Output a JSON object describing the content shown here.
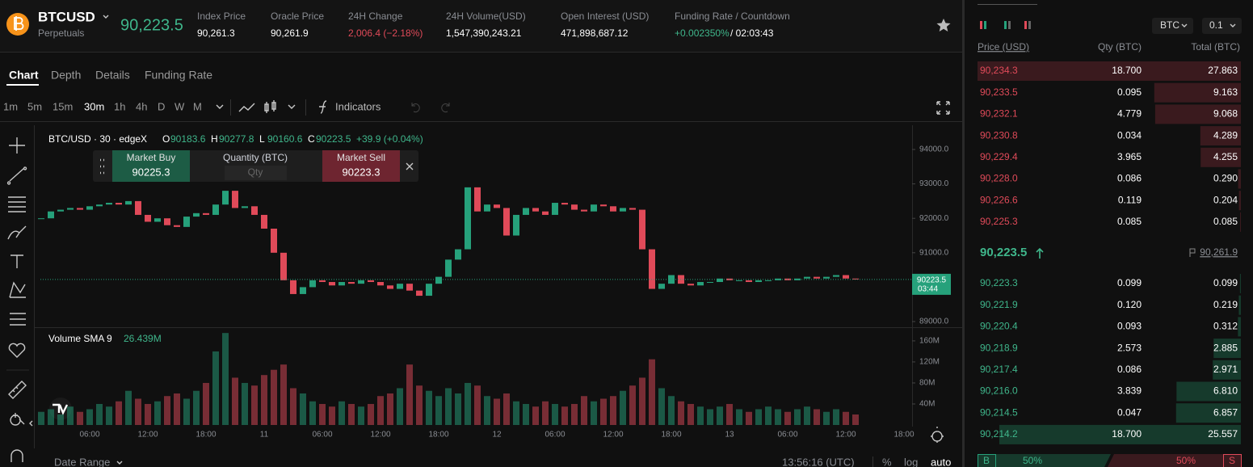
{
  "header": {
    "symbol": "BTCUSD",
    "market": "Perpetuals",
    "last_price": "90,223.5",
    "stats": [
      {
        "label": "Index Price",
        "value": "90,261.3"
      },
      {
        "label": "Oracle Price",
        "value": "90,261.9"
      },
      {
        "label": "24H Change",
        "value": "2,006.4 (−2.18%)"
      },
      {
        "label": "24H Volume(USD)",
        "value": "1,547,390,243.21"
      },
      {
        "label": "Open Interest (USD)",
        "value": "471,898,687.12"
      },
      {
        "label": "Funding Rate / Countdown",
        "value": "+0.002350%",
        "countdown": "/ 02:03:43"
      }
    ]
  },
  "tabs": [
    "Chart",
    "Depth",
    "Details",
    "Funding Rate"
  ],
  "intervals": [
    "1m",
    "5m",
    "15m",
    "30m",
    "1h",
    "4h",
    "D",
    "W",
    "M"
  ],
  "indicators": "Indicators",
  "trade_panel": {
    "buy": "Market Buy",
    "buy_price": "90225.3",
    "qty_label": "Quantity (BTC)",
    "qty_placeholder": "Qty",
    "sell": "Market Sell",
    "sell_price": "90223.3"
  },
  "chart_data": {
    "type": "candlestick",
    "title": "BTC/USD · 30 · edgeX",
    "ohlc": [
      {
        "key": "O",
        "value": "90183.6"
      },
      {
        "key": "H",
        "value": "90277.8"
      },
      {
        "key": "L",
        "value": "90160.6"
      },
      {
        "key": "C",
        "value": "90223.5"
      }
    ],
    "change": "+39.9 (+0.04%)",
    "price_label": "90223.5",
    "countdown": "03:44",
    "categories": [
      null,
      null,
      null,
      null,
      null,
      "06:00",
      null,
      null,
      null,
      null,
      null,
      "12:00",
      null,
      null,
      null,
      null,
      null,
      "18:00",
      null,
      null,
      null,
      null,
      null,
      "11",
      null,
      null,
      null,
      null,
      null,
      "06:00",
      null,
      null,
      null,
      null,
      null,
      "12:00",
      null,
      null,
      null,
      null,
      null,
      "18:00",
      null,
      null,
      null,
      null,
      null,
      "12",
      null,
      null,
      null,
      null,
      null,
      "06:00",
      null,
      null,
      null,
      null,
      null,
      "12:00",
      null,
      null,
      null,
      null,
      null,
      "18:00",
      null,
      null,
      null,
      null,
      null,
      "13",
      null,
      null,
      null,
      null,
      null,
      "06:00",
      null,
      null,
      null,
      null,
      null,
      "12:00",
      null,
      null,
      null,
      null,
      null,
      "18:00"
    ],
    "closes": [
      92000,
      92200,
      92250,
      92300,
      92250,
      92350,
      92400,
      92450,
      92400,
      92500,
      92100,
      91900,
      92000,
      91800,
      91750,
      92050,
      92150,
      92100,
      92400,
      92800,
      92300,
      92350,
      92100,
      91700,
      91000,
      90200,
      89800,
      90000,
      90200,
      90150,
      90050,
      90150,
      90100,
      90200,
      90150,
      90050,
      89950,
      90100,
      89900,
      89750,
      90100,
      90300,
      90800,
      91100,
      92900,
      92200,
      92400,
      92300,
      91500,
      92100,
      92300,
      92200,
      92100,
      92450,
      92400,
      92250,
      92200,
      92400,
      92350,
      92200,
      92300,
      92250,
      91100,
      89950,
      90100,
      90350,
      90100,
      90050,
      90150,
      90150,
      90250,
      90200,
      90200,
      90150,
      90200,
      90200,
      90250,
      90200,
      90250,
      90300,
      90250,
      90300,
      90350,
      90250,
      90223.5,
      null,
      null,
      null,
      null,
      null
    ],
    "ylim": [
      88836,
      94587
    ],
    "yticks": [
      {
        "value": 94000,
        "label": "94000.0"
      },
      {
        "value": 93000,
        "label": "93000.0"
      },
      {
        "value": 92000,
        "label": "92000.0"
      },
      {
        "value": 91000,
        "label": "91000.0"
      },
      {
        "value": 90000,
        "label": "90000.0"
      },
      {
        "value": 89000,
        "label": "89000.0"
      }
    ],
    "volume_title": "Volume SMA 9",
    "volume_sma": "26.439M",
    "volumes": [
      25,
      30,
      20,
      35,
      25,
      30,
      40,
      35,
      45,
      65,
      50,
      40,
      45,
      55,
      60,
      50,
      65,
      80,
      140,
      175,
      90,
      80,
      75,
      95,
      105,
      115,
      70,
      60,
      45,
      40,
      35,
      45,
      40,
      35,
      40,
      55,
      60,
      70,
      115,
      75,
      65,
      55,
      70,
      60,
      80,
      75,
      55,
      50,
      60,
      45,
      40,
      35,
      45,
      40,
      35,
      40,
      55,
      45,
      50,
      55,
      65,
      75,
      90,
      125,
      70,
      55,
      45,
      40,
      35,
      30,
      35,
      40,
      30,
      25,
      30,
      35,
      30,
      25,
      30,
      35,
      30,
      25,
      30,
      25,
      20,
      null,
      null,
      null,
      null,
      null
    ],
    "vlim": [
      0,
      186
    ],
    "vticks": [
      {
        "value": 160,
        "label": "160M"
      },
      {
        "value": 120,
        "label": "120M"
      },
      {
        "value": 80,
        "label": "80M"
      },
      {
        "value": 40,
        "label": "40M"
      }
    ],
    "up_color": "#26a17b",
    "down_color": "#e04a59"
  },
  "footer": {
    "date_range": "Date Range",
    "clock": "13:56:16 (UTC)",
    "percent": "%",
    "log": "log",
    "auto": "auto"
  },
  "orderbook": {
    "asset": "BTC",
    "step": "0.1",
    "headers": [
      "Price (USD)",
      "Qty (BTC)",
      "Total (BTC)"
    ],
    "asks": [
      [
        "90,234.3",
        "18.700",
        "27.863"
      ],
      [
        "90,233.5",
        "0.095",
        "9.163"
      ],
      [
        "90,232.1",
        "4.779",
        "9.068"
      ],
      [
        "90,230.8",
        "0.034",
        "4.289"
      ],
      [
        "90,229.4",
        "3.965",
        "4.255"
      ],
      [
        "90,228.0",
        "0.086",
        "0.290"
      ],
      [
        "90,226.6",
        "0.119",
        "0.204"
      ],
      [
        "90,225.3",
        "0.085",
        "0.085"
      ]
    ],
    "mid_price": "90,223.5",
    "mark_price": "90,261.9",
    "bids": [
      [
        "90,223.3",
        "0.099",
        "0.099"
      ],
      [
        "90,221.9",
        "0.120",
        "0.219"
      ],
      [
        "90,220.4",
        "0.093",
        "0.312"
      ],
      [
        "90,218.9",
        "2.573",
        "2.885"
      ],
      [
        "90,217.4",
        "0.086",
        "2.971"
      ],
      [
        "90,216.0",
        "3.839",
        "6.810"
      ],
      [
        "90,214.5",
        "0.047",
        "6.857"
      ],
      [
        "90,214.2",
        "18.700",
        "25.557"
      ]
    ],
    "buy_label": "B",
    "buy_pct": "50%",
    "sell_pct": "50%",
    "sell_label": "S"
  }
}
